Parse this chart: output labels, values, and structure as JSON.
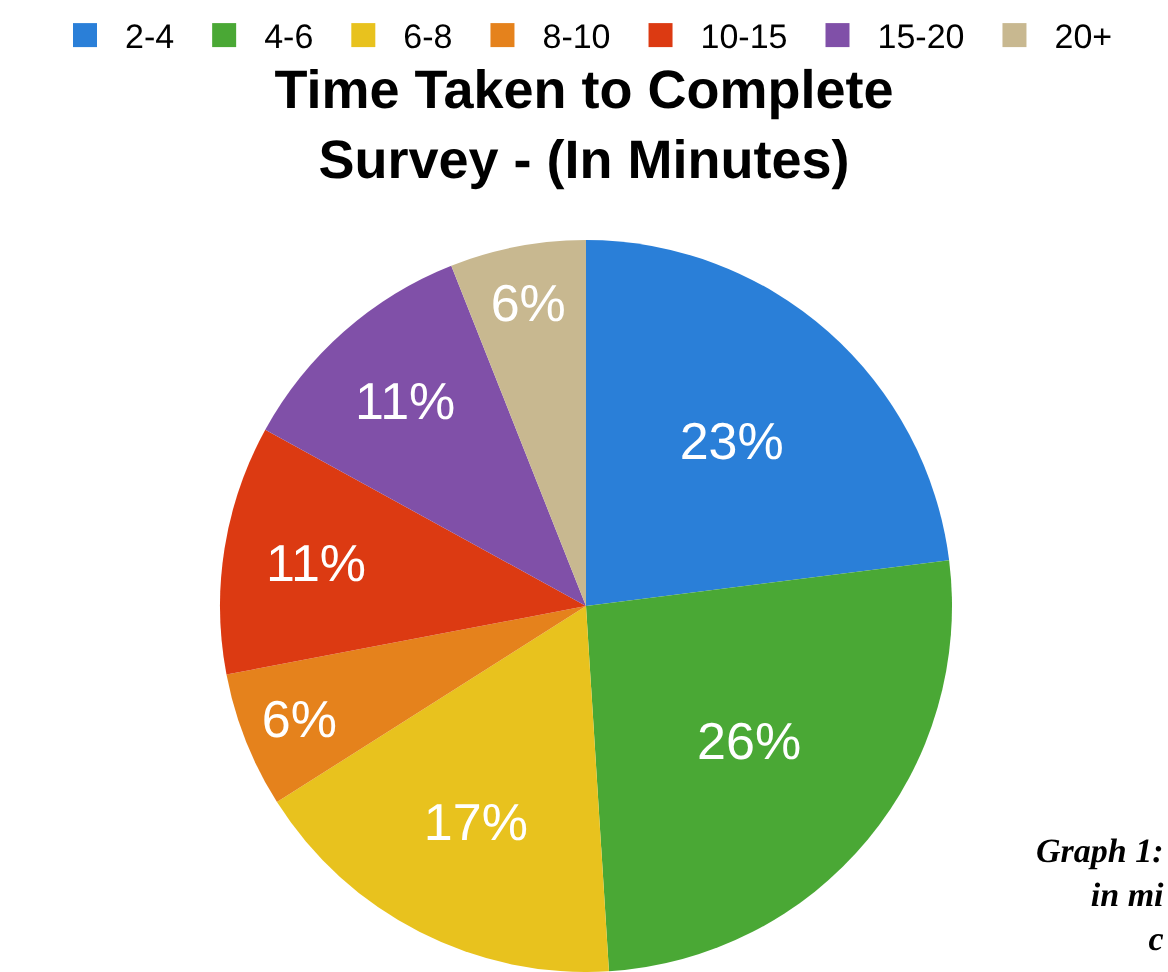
{
  "chart_data": {
    "type": "pie",
    "title": "Time Taken to Complete\nSurvey - (In Minutes)",
    "categories": [
      "2-4",
      "4-6",
      "6-8",
      "8-10",
      "10-15",
      "15-20",
      "20+"
    ],
    "values": [
      23,
      26,
      17,
      6,
      11,
      11,
      6
    ],
    "value_labels": [
      "23%",
      "26%",
      "17%",
      "6%",
      "11%",
      "11%",
      "6%"
    ],
    "colors": [
      "#2a7fd8",
      "#4aa835",
      "#e8c21e",
      "#e5821c",
      "#dc3a12",
      "#8050a8",
      "#c8b890"
    ],
    "legend": "top",
    "annotations": [
      "Graph 1:\nin mi\nc"
    ]
  }
}
